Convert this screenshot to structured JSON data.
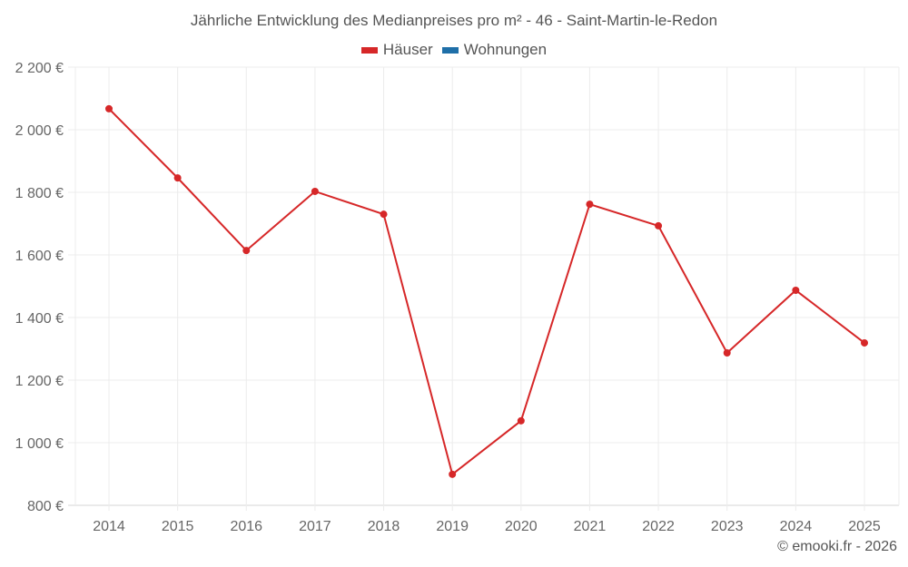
{
  "title": "Jährliche Entwicklung des Medianpreises pro m² - 46 - Saint-Martin-le-Redon",
  "legend": [
    {
      "label": "Häuser",
      "color": "#d62728"
    },
    {
      "label": "Wohnungen",
      "color": "#1f6fa8"
    }
  ],
  "credit": "© emooki.fr - 2026",
  "chart_data": {
    "type": "line",
    "title": "Jährliche Entwicklung des Medianpreises pro m² - 46 - Saint-Martin-le-Redon",
    "xlabel": "",
    "ylabel": "",
    "x": [
      2014,
      2015,
      2016,
      2017,
      2018,
      2019,
      2020,
      2021,
      2022,
      2023,
      2024,
      2025
    ],
    "series": [
      {
        "name": "Häuser",
        "color": "#d62728",
        "values": [
          2067,
          1846,
          1614,
          1803,
          1730,
          899,
          1070,
          1762,
          1693,
          1287,
          1487,
          1319
        ]
      },
      {
        "name": "Wohnungen",
        "color": "#1f6fa8",
        "values": []
      }
    ],
    "ylim": [
      800,
      2200
    ],
    "yticks": [
      800,
      1000,
      1200,
      1400,
      1600,
      1800,
      2000,
      2200
    ],
    "ytick_labels": [
      "800 €",
      "1 000 €",
      "1 200 €",
      "1 400 €",
      "1 600 €",
      "1 800 €",
      "2 000 €",
      "2 200 €"
    ],
    "grid": true,
    "legend_position": "top"
  }
}
